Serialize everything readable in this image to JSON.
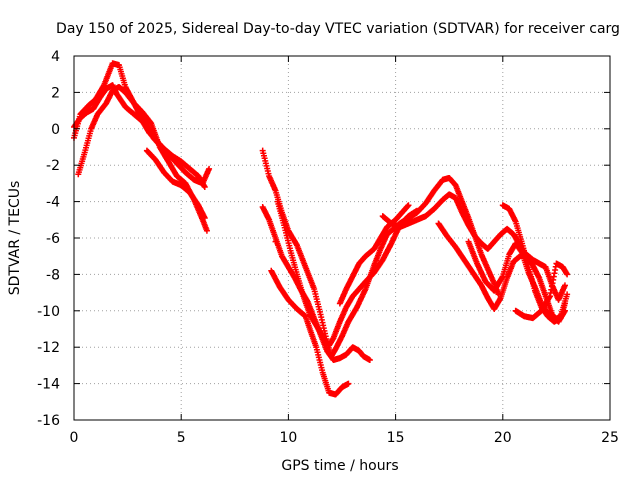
{
  "chart_data": {
    "type": "scatter",
    "title": "Day 150 of 2025, Sidereal Day-to-day VTEC variation (SDTVAR) for receiver carg",
    "xlabel": "GPS time / hours",
    "ylabel": "SDTVAR / TECUs",
    "xlim": [
      0,
      25
    ],
    "ylim": [
      -16,
      4
    ],
    "xticks": [
      "0",
      "5",
      "10",
      "15",
      "20",
      "25"
    ],
    "yticks": [
      "4",
      "2",
      "0",
      "-2",
      "-4",
      "-6",
      "-8",
      "-10",
      "-12",
      "-14",
      "-16"
    ],
    "grid": true,
    "marker": "+",
    "color": "#ff0000",
    "tracks": [
      [
        [
          0.0,
          -0.5
        ],
        [
          0.3,
          0.8
        ],
        [
          0.7,
          1.3
        ],
        [
          1.0,
          1.6
        ],
        [
          1.4,
          2.4
        ],
        [
          1.8,
          3.6
        ],
        [
          2.1,
          3.5
        ],
        [
          2.4,
          2.3
        ],
        [
          2.8,
          1.4
        ],
        [
          3.1,
          0.7
        ],
        [
          3.4,
          0.2
        ],
        [
          3.7,
          -0.5
        ],
        [
          4.0,
          -0.9
        ],
        [
          4.4,
          -1.4
        ],
        [
          4.8,
          -1.9
        ],
        [
          5.2,
          -2.4
        ],
        [
          5.6,
          -2.8
        ],
        [
          6.0,
          -3.0
        ],
        [
          6.3,
          -2.2
        ]
      ],
      [
        [
          0.2,
          -2.5
        ],
        [
          0.5,
          -1.3
        ],
        [
          0.8,
          0.0
        ],
        [
          1.1,
          0.8
        ],
        [
          1.5,
          1.4
        ],
        [
          1.8,
          2.1
        ],
        [
          2.1,
          2.3
        ],
        [
          2.4,
          2.0
        ],
        [
          2.8,
          1.4
        ],
        [
          3.2,
          0.9
        ],
        [
          3.6,
          0.3
        ],
        [
          4.0,
          -1.0
        ],
        [
          4.4,
          -1.8
        ],
        [
          4.8,
          -2.6
        ],
        [
          5.2,
          -3.0
        ],
        [
          5.6,
          -3.9
        ],
        [
          6.0,
          -5.0
        ],
        [
          6.2,
          -5.6
        ]
      ],
      [
        [
          0.0,
          0.1
        ],
        [
          0.3,
          0.6
        ],
        [
          0.6,
          0.9
        ],
        [
          0.9,
          1.1
        ],
        [
          1.2,
          1.7
        ],
        [
          1.5,
          2.2
        ],
        [
          1.8,
          2.4
        ],
        [
          2.0,
          1.9
        ],
        [
          2.4,
          1.2
        ],
        [
          2.8,
          0.8
        ],
        [
          3.2,
          0.4
        ],
        [
          3.5,
          -0.2
        ],
        [
          3.8,
          -0.6
        ],
        [
          4.2,
          -1.1
        ],
        [
          4.6,
          -1.5
        ],
        [
          5.0,
          -1.8
        ],
        [
          5.4,
          -2.2
        ],
        [
          5.8,
          -2.6
        ],
        [
          6.1,
          -3.2
        ]
      ],
      [
        [
          3.4,
          -1.2
        ],
        [
          3.8,
          -1.7
        ],
        [
          4.2,
          -2.4
        ],
        [
          4.6,
          -2.9
        ],
        [
          5.0,
          -3.1
        ],
        [
          5.4,
          -3.5
        ],
        [
          5.8,
          -4.2
        ],
        [
          6.1,
          -4.9
        ]
      ],
      [
        [
          8.8,
          -1.2
        ],
        [
          9.1,
          -2.6
        ],
        [
          9.4,
          -3.4
        ],
        [
          9.7,
          -4.6
        ],
        [
          10.0,
          -5.6
        ],
        [
          10.4,
          -6.4
        ],
        [
          10.8,
          -7.6
        ],
        [
          11.2,
          -8.8
        ],
        [
          11.5,
          -10.2
        ],
        [
          11.8,
          -11.7
        ],
        [
          12.0,
          -12.5
        ],
        [
          12.2,
          -12.1
        ],
        [
          12.5,
          -11.4
        ],
        [
          12.8,
          -10.6
        ],
        [
          13.2,
          -9.8
        ],
        [
          13.6,
          -8.8
        ],
        [
          14.0,
          -7.5
        ],
        [
          14.3,
          -6.6
        ],
        [
          14.6,
          -5.8
        ],
        [
          14.9,
          -5.5
        ],
        [
          15.2,
          -5.2
        ],
        [
          15.6,
          -4.9
        ],
        [
          16.0,
          -4.6
        ],
        [
          16.4,
          -4.1
        ],
        [
          16.8,
          -3.4
        ],
        [
          17.2,
          -2.8
        ],
        [
          17.5,
          -2.7
        ],
        [
          17.8,
          -3.1
        ],
        [
          18.1,
          -4.0
        ],
        [
          18.4,
          -4.9
        ],
        [
          18.7,
          -5.9
        ],
        [
          19.0,
          -6.9
        ],
        [
          19.3,
          -7.7
        ],
        [
          19.6,
          -8.5
        ],
        [
          19.8,
          -9.1
        ]
      ],
      [
        [
          8.8,
          -4.3
        ],
        [
          9.1,
          -5.0
        ],
        [
          9.4,
          -6.0
        ],
        [
          9.7,
          -7.0
        ],
        [
          10.0,
          -7.6
        ],
        [
          10.3,
          -8.2
        ],
        [
          10.6,
          -8.9
        ],
        [
          10.9,
          -9.5
        ],
        [
          11.2,
          -10.4
        ],
        [
          11.5,
          -11.3
        ],
        [
          11.8,
          -12.2
        ],
        [
          12.1,
          -12.7
        ],
        [
          12.4,
          -12.6
        ],
        [
          12.7,
          -12.4
        ],
        [
          13.0,
          -12.0
        ],
        [
          13.3,
          -12.2
        ],
        [
          13.5,
          -12.5
        ],
        [
          13.8,
          -12.7
        ]
      ],
      [
        [
          9.2,
          -7.8
        ],
        [
          9.6,
          -8.7
        ],
        [
          10.0,
          -9.4
        ],
        [
          10.4,
          -9.9
        ],
        [
          10.8,
          -10.3
        ],
        [
          11.0,
          -11.0
        ],
        [
          11.3,
          -12.0
        ],
        [
          11.6,
          -13.4
        ],
        [
          11.9,
          -14.5
        ],
        [
          12.2,
          -14.6
        ],
        [
          12.5,
          -14.2
        ],
        [
          12.8,
          -14.0
        ]
      ],
      [
        [
          9.5,
          -4.0
        ],
        [
          9.8,
          -5.3
        ],
        [
          10.1,
          -6.7
        ],
        [
          10.4,
          -8.0
        ],
        [
          10.7,
          -9.2
        ],
        [
          11.0,
          -10.2
        ],
        [
          11.3,
          -10.8
        ],
        [
          11.6,
          -11.4
        ],
        [
          11.9,
          -11.9
        ],
        [
          12.1,
          -11.5
        ],
        [
          12.4,
          -10.6
        ],
        [
          12.7,
          -9.8
        ],
        [
          13.0,
          -9.2
        ],
        [
          13.3,
          -8.8
        ],
        [
          13.6,
          -8.4
        ],
        [
          14.0,
          -7.9
        ],
        [
          14.4,
          -7.2
        ],
        [
          14.8,
          -6.3
        ],
        [
          15.2,
          -5.3
        ],
        [
          15.6,
          -4.8
        ],
        [
          16.0,
          -4.5
        ]
      ],
      [
        [
          12.4,
          -9.6
        ],
        [
          12.7,
          -8.8
        ],
        [
          13.0,
          -8.1
        ],
        [
          13.3,
          -7.4
        ],
        [
          13.6,
          -7.0
        ],
        [
          14.0,
          -6.6
        ],
        [
          14.3,
          -6.0
        ],
        [
          14.6,
          -5.4
        ],
        [
          15.0,
          -5.0
        ],
        [
          15.3,
          -4.6
        ],
        [
          15.6,
          -4.2
        ]
      ],
      [
        [
          14.4,
          -4.8
        ],
        [
          14.8,
          -5.2
        ],
        [
          15.2,
          -5.4
        ],
        [
          15.6,
          -5.2
        ],
        [
          16.0,
          -5.0
        ],
        [
          16.4,
          -4.8
        ],
        [
          16.8,
          -4.4
        ],
        [
          17.2,
          -3.9
        ],
        [
          17.5,
          -3.6
        ],
        [
          17.8,
          -3.8
        ],
        [
          18.1,
          -4.6
        ],
        [
          18.4,
          -5.3
        ],
        [
          18.7,
          -5.9
        ],
        [
          19.0,
          -6.3
        ],
        [
          19.3,
          -6.6
        ],
        [
          19.6,
          -6.2
        ],
        [
          19.9,
          -5.8
        ],
        [
          20.2,
          -5.5
        ],
        [
          20.5,
          -5.8
        ],
        [
          20.8,
          -6.4
        ],
        [
          21.1,
          -7.0
        ],
        [
          21.4,
          -7.5
        ],
        [
          21.7,
          -8.2
        ],
        [
          22.0,
          -9.2
        ],
        [
          22.3,
          -10.2
        ],
        [
          22.6,
          -10.6
        ],
        [
          22.9,
          -10.0
        ]
      ],
      [
        [
          17.0,
          -5.2
        ],
        [
          17.4,
          -5.9
        ],
        [
          17.8,
          -6.5
        ],
        [
          18.2,
          -7.2
        ],
        [
          18.6,
          -7.9
        ],
        [
          19.0,
          -8.6
        ],
        [
          19.3,
          -9.3
        ],
        [
          19.6,
          -9.9
        ],
        [
          19.9,
          -9.3
        ],
        [
          20.2,
          -8.2
        ],
        [
          20.5,
          -7.3
        ],
        [
          20.8,
          -7.0
        ],
        [
          21.1,
          -6.9
        ],
        [
          21.4,
          -7.2
        ],
        [
          21.7,
          -7.4
        ],
        [
          22.0,
          -7.6
        ],
        [
          22.3,
          -8.6
        ],
        [
          22.6,
          -9.4
        ],
        [
          22.9,
          -8.6
        ]
      ],
      [
        [
          18.4,
          -6.2
        ],
        [
          18.8,
          -7.4
        ],
        [
          19.2,
          -8.4
        ],
        [
          19.6,
          -8.9
        ],
        [
          20.0,
          -8.1
        ],
        [
          20.3,
          -6.9
        ],
        [
          20.6,
          -6.3
        ],
        [
          20.9,
          -6.8
        ],
        [
          21.2,
          -7.9
        ],
        [
          21.5,
          -8.7
        ],
        [
          21.8,
          -9.6
        ],
        [
          22.1,
          -10.2
        ],
        [
          22.4,
          -10.5
        ],
        [
          22.7,
          -10.3
        ],
        [
          23.0,
          -9.1
        ]
      ],
      [
        [
          20.0,
          -4.2
        ],
        [
          20.3,
          -4.4
        ],
        [
          20.6,
          -5.1
        ],
        [
          20.9,
          -6.3
        ],
        [
          21.2,
          -7.6
        ],
        [
          21.5,
          -8.9
        ],
        [
          21.8,
          -9.8
        ],
        [
          22.1,
          -10.3
        ],
        [
          22.4,
          -10.6
        ],
        [
          22.7,
          -10.4
        ],
        [
          22.9,
          -9.6
        ]
      ],
      [
        [
          20.6,
          -10.0
        ],
        [
          21.0,
          -10.3
        ],
        [
          21.4,
          -10.4
        ],
        [
          21.8,
          -10.0
        ],
        [
          22.2,
          -9.2
        ],
        [
          22.5,
          -7.4
        ],
        [
          22.8,
          -7.6
        ],
        [
          23.0,
          -8.0
        ]
      ],
      [
        [
          9.4,
          -6.2
        ]
      ]
    ]
  }
}
